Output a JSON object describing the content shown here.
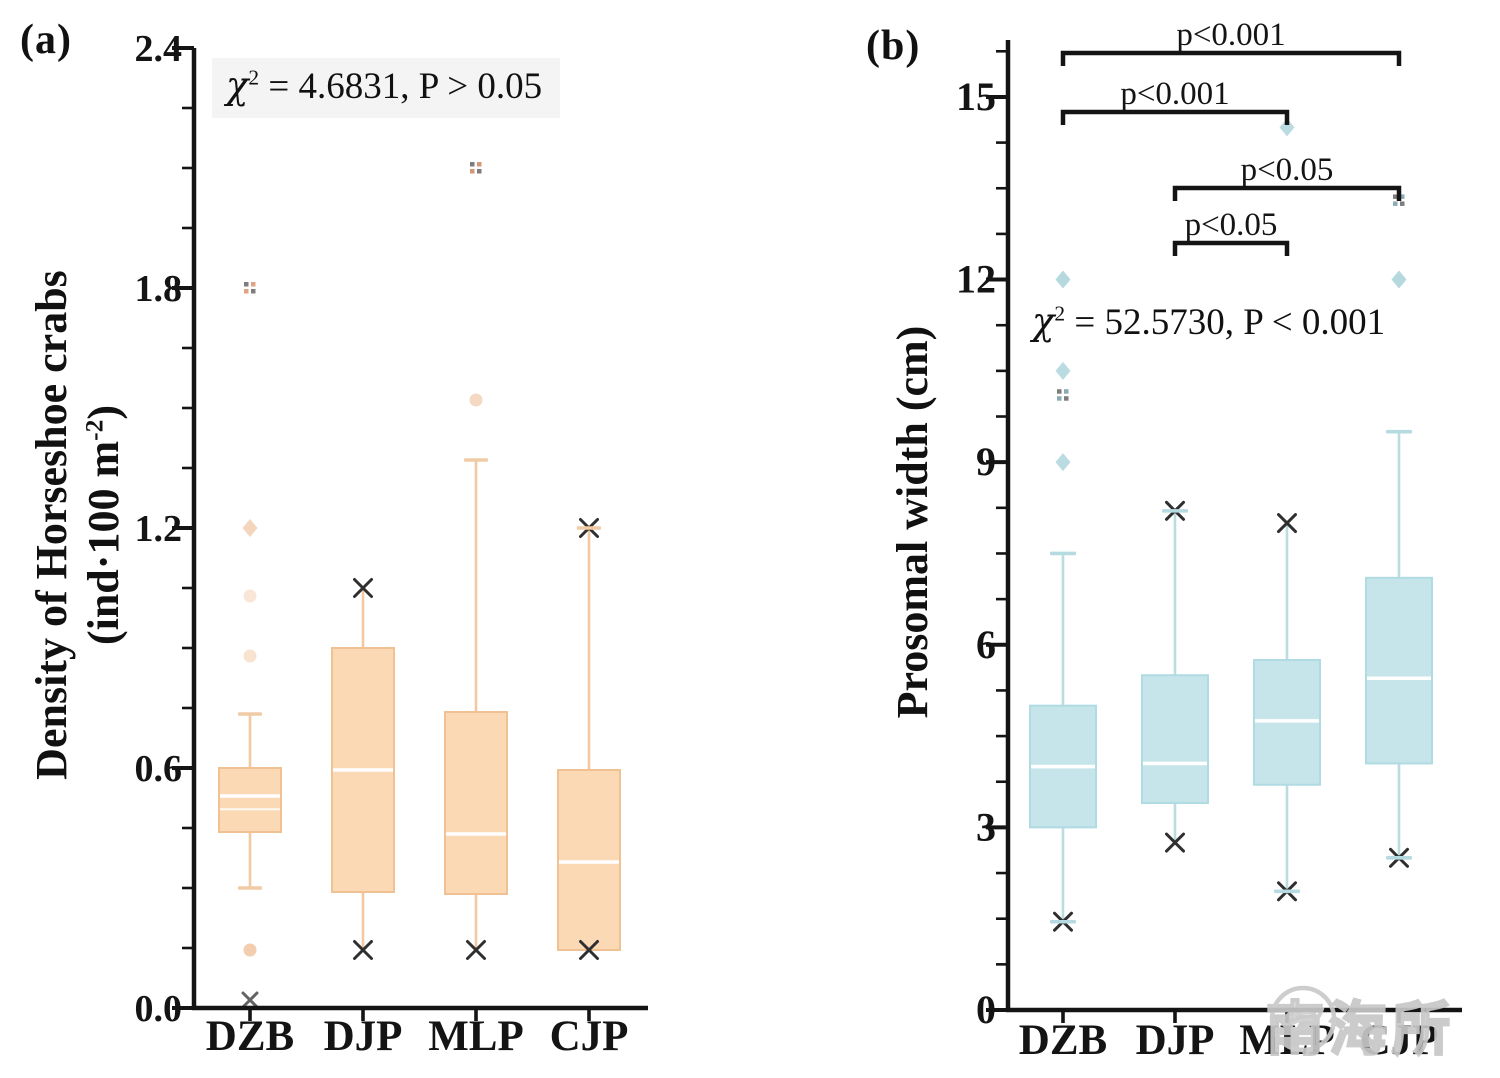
{
  "figure": {
    "background": "#ffffff",
    "axis_color": "#141414"
  },
  "watermark": {
    "text": "南海所"
  },
  "chart_data": [
    {
      "type": "box",
      "panel_letter": "(a)",
      "categories": [
        "DZB",
        "DJP",
        "MLP",
        "CJP"
      ],
      "ylabel_lines": {
        "line1": "Density of Horseshoe crabs",
        "line2_pre": "(ind·100 m",
        "line2_sup": "-2",
        "line2_post": ")"
      },
      "stat_annotation": {
        "chi": "χ",
        "exp": "2",
        "rest": " = 4.6831, P > 0.05"
      },
      "chi_square": 4.6831,
      "p_text": "P > 0.05",
      "ylim": [
        0,
        2.4
      ],
      "yticks": [
        {
          "v": 0.0,
          "label": "0.0"
        },
        {
          "v": 0.6,
          "label": "0.6"
        },
        {
          "v": 1.2,
          "label": "1.2"
        },
        {
          "v": 1.8,
          "label": "1.8"
        },
        {
          "v": 2.4,
          "label": "2.4"
        }
      ],
      "minor_step": 0.15,
      "colors": {
        "box_fill": "#fbd9b4",
        "box_edge": "#f0c193",
        "whisker": "#f2c9a2",
        "cap": "#f0cba6",
        "marker": "#efc09a",
        "dots": "#cf8d66",
        "median": "#ffffff",
        "x_marker": "#2f2f2f"
      },
      "boxes": [
        {
          "category": "DZB",
          "q1": 0.44,
          "median": 0.53,
          "q3": 0.6,
          "mean_line": 0.497,
          "whisker_low": {
            "v": 0.3,
            "marks": [
              "cap"
            ]
          },
          "whisker_high": {
            "v": 0.735,
            "marks": [
              "cap"
            ]
          },
          "outliers": [
            {
              "v": 0.02,
              "type": "x",
              "alpha": 0.75
            },
            {
              "v": 0.145,
              "type": "circle",
              "alpha": 0.8
            },
            {
              "v": 0.88,
              "type": "circle",
              "alpha": 0.45
            },
            {
              "v": 1.03,
              "type": "circle",
              "alpha": 0.4
            },
            {
              "v": 1.2,
              "type": "diamond",
              "alpha": 0.65
            },
            {
              "v": 1.8,
              "type": "dots",
              "alpha": 0.9,
              "color": "#dd9a76"
            }
          ]
        },
        {
          "category": "DJP",
          "q1": 0.29,
          "median": 0.595,
          "q3": 0.9,
          "whisker_low": {
            "v": 0.145,
            "marks": [
              "x"
            ]
          },
          "whisker_high": {
            "v": 1.05,
            "marks": [
              "x"
            ]
          },
          "outliers": []
        },
        {
          "category": "MLP",
          "q1": 0.285,
          "median": 0.435,
          "q3": 0.74,
          "whisker_low": {
            "v": 0.145,
            "marks": [
              "x"
            ]
          },
          "whisker_high": {
            "v": 1.37,
            "marks": [
              "cap"
            ]
          },
          "outliers": [
            {
              "v": 1.52,
              "type": "circle",
              "alpha": 0.6
            },
            {
              "v": 2.1,
              "type": "dots",
              "alpha": 0.9
            }
          ]
        },
        {
          "category": "CJP",
          "q1": 0.145,
          "median": 0.365,
          "q3": 0.595,
          "whisker_low": {
            "v": 0.145,
            "marks": [
              "x"
            ]
          },
          "whisker_high": {
            "v": 1.2,
            "marks": [
              "x",
              "cap"
            ]
          },
          "outliers": []
        }
      ]
    },
    {
      "type": "box",
      "panel_letter": "(b)",
      "categories": [
        "DZB",
        "DJP",
        "MLP",
        "CJP"
      ],
      "ylabel": "Prosomal width (cm)",
      "stat_annotation": {
        "chi": "χ",
        "exp": "2",
        "rest": " = 52.5730, P < 0.001"
      },
      "chi_square": 52.573,
      "p_text": "P < 0.001",
      "ylim": [
        0,
        15
      ],
      "yticks": [
        {
          "v": 0,
          "label": "0"
        },
        {
          "v": 3,
          "label": "3"
        },
        {
          "v": 6,
          "label": "6"
        },
        {
          "v": 9,
          "label": "9"
        },
        {
          "v": 12,
          "label": "12"
        },
        {
          "v": 15,
          "label": "15"
        }
      ],
      "minor_step": 0.75,
      "colors": {
        "box_fill": "#c5e5ea",
        "box_edge": "#b0dbe2",
        "whisker": "#b9dde2",
        "cap": "#b5dbe0",
        "marker": "#a9d2d9",
        "dots": "#7fa3ad",
        "median": "#ffffff",
        "x_marker": "#2f2f2f"
      },
      "boxes": [
        {
          "category": "DZB",
          "q1": 3.0,
          "median": 4.0,
          "q3": 5.0,
          "whisker_low": {
            "v": 1.45,
            "marks": [
              "x",
              "cap"
            ]
          },
          "whisker_high": {
            "v": 7.5,
            "marks": [
              "cap"
            ]
          },
          "outliers": [
            {
              "v": 9.0,
              "type": "diamond",
              "alpha": 0.8
            },
            {
              "v": 10.1,
              "type": "dots",
              "alpha": 0.9
            },
            {
              "v": 10.5,
              "type": "diamond",
              "alpha": 0.8
            },
            {
              "v": 12.0,
              "type": "diamond",
              "alpha": 0.85
            }
          ]
        },
        {
          "category": "DJP",
          "q1": 3.4,
          "median": 4.05,
          "q3": 5.5,
          "whisker_low": {
            "v": 2.75,
            "marks": [
              "x"
            ]
          },
          "whisker_high": {
            "v": 8.2,
            "marks": [
              "x",
              "cap"
            ]
          },
          "outliers": []
        },
        {
          "category": "MLP",
          "q1": 3.7,
          "median": 4.75,
          "q3": 5.75,
          "whisker_low": {
            "v": 1.95,
            "marks": [
              "x",
              "cap"
            ]
          },
          "whisker_high": {
            "v": 8.0,
            "marks": [
              "x"
            ]
          },
          "outliers": [
            {
              "v": 14.5,
              "type": "diamond",
              "alpha": 0.8
            }
          ]
        },
        {
          "category": "CJP",
          "q1": 4.05,
          "median": 5.45,
          "q3": 7.1,
          "whisker_low": {
            "v": 2.5,
            "marks": [
              "x",
              "cap"
            ]
          },
          "whisker_high": {
            "v": 9.5,
            "marks": [
              "cap"
            ]
          },
          "outliers": [
            {
              "v": 12.0,
              "type": "diamond",
              "alpha": 0.85
            },
            {
              "v": 13.3,
              "type": "dots",
              "alpha": 0.9
            }
          ]
        }
      ],
      "comparisons": [
        {
          "a": "DZB",
          "b": "CJP",
          "label": "p<0.001"
        },
        {
          "a": "DZB",
          "b": "MLP",
          "label": "p<0.001"
        },
        {
          "a": "DJP",
          "b": "CJP",
          "label": "p<0.05"
        },
        {
          "a": "DJP",
          "b": "MLP",
          "label": "p<0.05"
        }
      ]
    }
  ]
}
